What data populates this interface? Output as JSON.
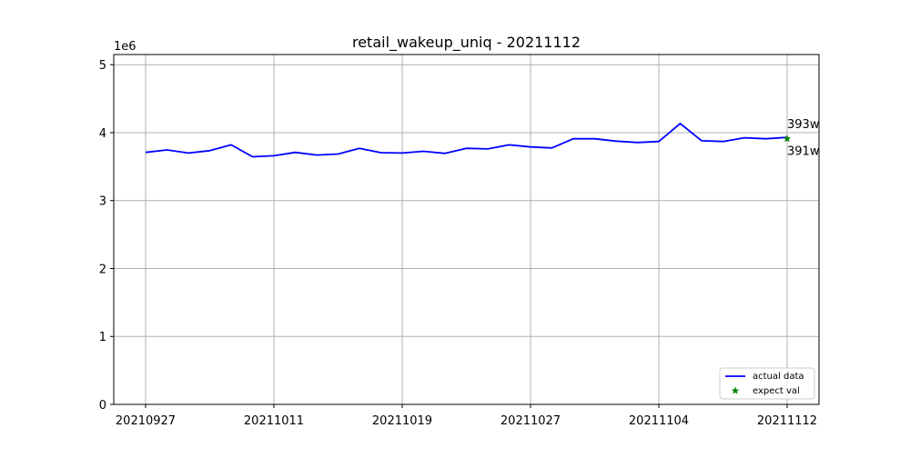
{
  "chart_data": {
    "type": "line",
    "title": "retail_wakeup_uniq - 20211112",
    "xlabel": "",
    "ylabel": "",
    "y_scale_label": "1e6",
    "ylim": [
      0,
      5150000
    ],
    "y_ticks": [
      0,
      1,
      2,
      3,
      4,
      5
    ],
    "x_tick_labels": [
      "20210927",
      "20211011",
      "20211019",
      "20211027",
      "20211104",
      "20211112"
    ],
    "x_tick_index": [
      0,
      6,
      12,
      18,
      24,
      30
    ],
    "grid": true,
    "legend_position": "lower right",
    "series": [
      {
        "name": "actual data",
        "color": "#0000ff",
        "values": [
          3710000,
          3745000,
          3700000,
          3735000,
          3820000,
          3645000,
          3660000,
          3710000,
          3670000,
          3685000,
          3770000,
          3705000,
          3700000,
          3725000,
          3695000,
          3770000,
          3760000,
          3820000,
          3790000,
          3775000,
          3910000,
          3910000,
          3875000,
          3855000,
          3870000,
          4135000,
          3880000,
          3870000,
          3925000,
          3910000,
          3930000
        ]
      }
    ],
    "expected": {
      "name": "expect val",
      "color": "#008000",
      "x_index": 30,
      "value": 3910000
    },
    "annotations": [
      {
        "text": "393w",
        "color": "#0000ff"
      },
      {
        "text": "391w",
        "color": "#008000"
      }
    ]
  }
}
